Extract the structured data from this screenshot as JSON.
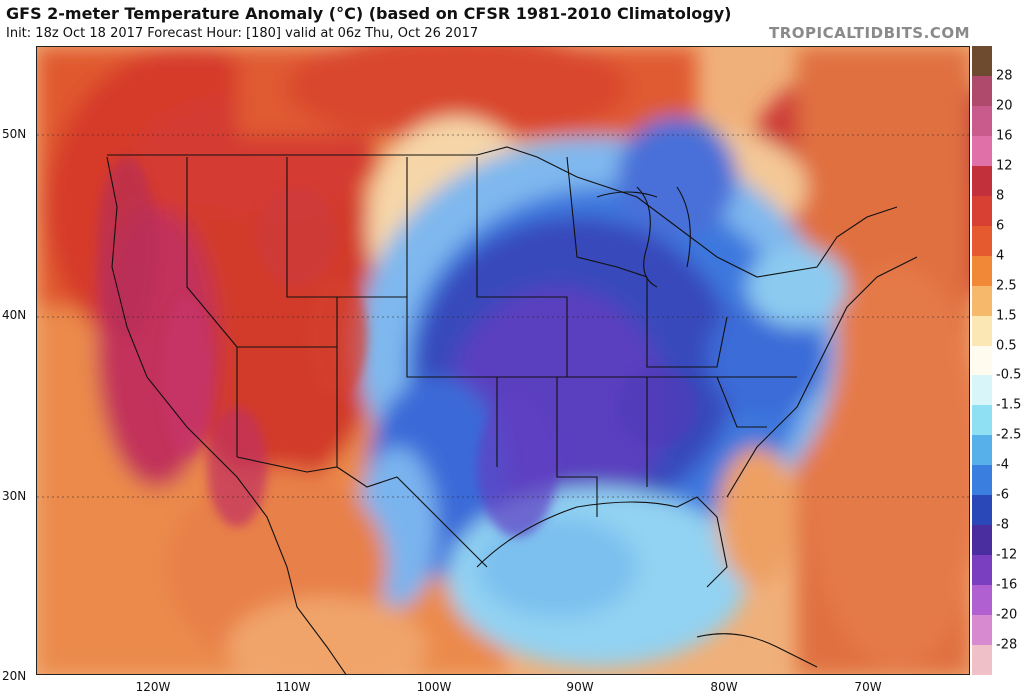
{
  "header": {
    "title": "GFS 2-meter Temperature Anomaly (°C) (based on CFSR 1981-2010 Climatology)",
    "subtitle": "Init: 18z Oct 18 2017   Forecast Hour: [180]   valid at 06z Thu, Oct 26 2017",
    "brand": "TROPICALTIDBITS.COM"
  },
  "map": {
    "lat_labels": [
      "50N",
      "40N",
      "30N",
      "20N"
    ],
    "lon_labels": [
      "120W",
      "110W",
      "100W",
      "90W",
      "80W",
      "70W"
    ]
  },
  "colorbar": {
    "labels": [
      "28",
      "20",
      "16",
      "12",
      "8",
      "6",
      "4",
      "2.5",
      "1.5",
      "0.5",
      "-0.5",
      "-1.5",
      "-2.5",
      "-4",
      "-6",
      "-8",
      "-12",
      "-16",
      "-20",
      "-28"
    ],
    "colors": [
      "#6e4a2e",
      "#b04a6c",
      "#c85a8c",
      "#e070a8",
      "#c2303c",
      "#d84034",
      "#e65a30",
      "#f08838",
      "#f6b86a",
      "#fbe7b4",
      "#fffbee",
      "#d8f6fa",
      "#8ee0f2",
      "#58b0ea",
      "#3a7ee0",
      "#2a48b8",
      "#4a2ea0",
      "#7a3ec0",
      "#b060d0",
      "#d88ad0",
      "#f0c0c8"
    ]
  },
  "palette": {
    "warm_dark": "#b8233a",
    "warm": "#d8402f",
    "warm_mid": "#ea7a3e",
    "warm_light": "#f4b478",
    "neutral": "#fbe6c0",
    "cool_light": "#9ad8f0",
    "cool": "#3f7fe0",
    "cool_dark": "#2b3fb2",
    "cold": "#5a3fbf",
    "pink": "#d4609a"
  }
}
